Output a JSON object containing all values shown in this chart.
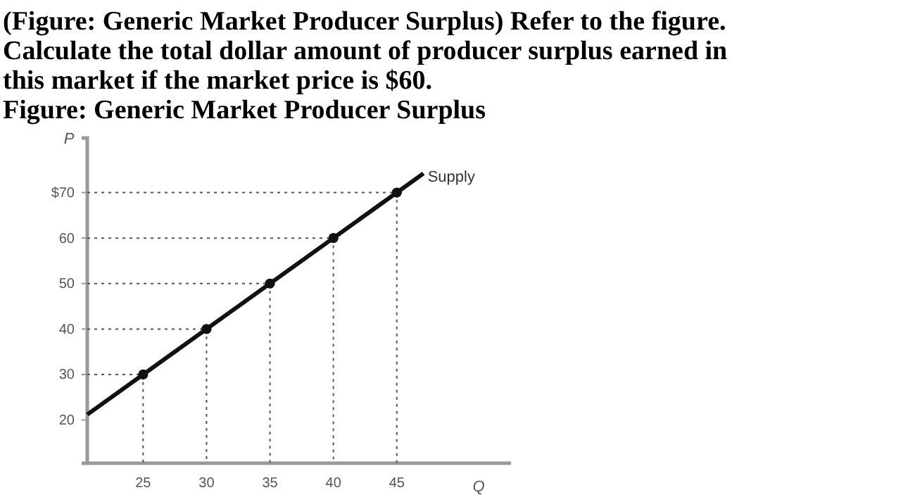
{
  "chart_data": {
    "type": "line",
    "title": "(Figure: Generic Market Producer Surplus) Refer to the figure. Calculate the total dollar amount of producer surplus earned in this market if the market price is $60.",
    "subtitle": "Figure: Generic Market Producer Surplus",
    "xlabel": "Q",
    "ylabel": "P",
    "xlim": [
      20.6,
      54
    ],
    "ylim": [
      10.5,
      82
    ],
    "xticks": [
      25,
      30,
      35,
      40,
      45
    ],
    "yticks": [
      20,
      30,
      40,
      50,
      60,
      {
        "value": 70,
        "label": "$70"
      }
    ],
    "grid": false,
    "series": [
      {
        "color": "#555555",
        "x": [
          20.6,
          25,
          25
        ],
        "values": [
          30,
          30,
          10.5
        ],
        "marker": "none",
        "line_style": "dotted"
      },
      {
        "color": "#555555",
        "x": [
          20.6,
          30,
          30
        ],
        "values": [
          40,
          40,
          10.5
        ],
        "marker": "none",
        "line_style": "dotted"
      },
      {
        "color": "#555555",
        "x": [
          20.6,
          35,
          35
        ],
        "values": [
          50,
          50,
          10.5
        ],
        "marker": "none",
        "line_style": "dotted"
      },
      {
        "color": "#555555",
        "x": [
          20.6,
          40,
          40
        ],
        "values": [
          60,
          60,
          10.5
        ],
        "marker": "none",
        "line_style": "dotted"
      },
      {
        "color": "#555555",
        "x": [
          20.6,
          45,
          45
        ],
        "values": [
          70,
          70,
          10.5
        ],
        "marker": "none",
        "line_style": "dotted"
      },
      {
        "name": "Supply",
        "color": "#111111",
        "x": [
          20.6,
          47.1
        ],
        "values": [
          21.2,
          74.2
        ],
        "marker": "none",
        "line_style": "solid"
      },
      {
        "type": "scatter",
        "color": "#111111",
        "x": [
          25,
          30,
          35,
          40,
          45
        ],
        "values": [
          30,
          40,
          50,
          60,
          70
        ],
        "marker": "circle"
      }
    ]
  }
}
